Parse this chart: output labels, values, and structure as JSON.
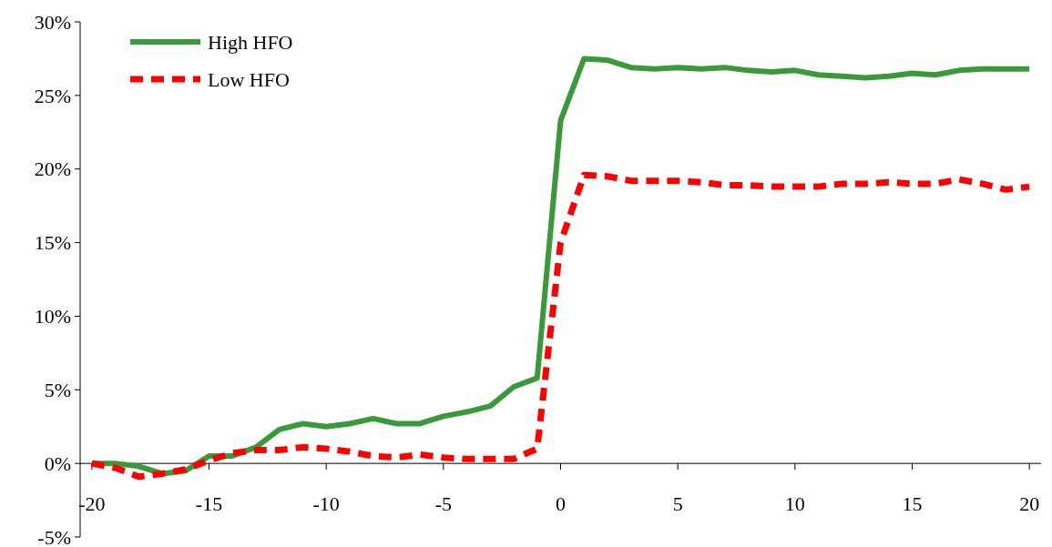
{
  "chart_data": {
    "type": "line",
    "x": [
      -20,
      -19,
      -18,
      -17,
      -16,
      -15,
      -14,
      -13,
      -12,
      -11,
      -10,
      -9,
      -8,
      -7,
      -6,
      -5,
      -4,
      -3,
      -2,
      -1,
      0,
      1,
      2,
      3,
      4,
      5,
      6,
      7,
      8,
      9,
      10,
      11,
      12,
      13,
      14,
      15,
      16,
      17,
      18,
      19,
      20
    ],
    "series": [
      {
        "name": "High HFO",
        "color": "#3a9a3a",
        "line_style": "solid",
        "values": [
          0,
          0,
          -0.2,
          -0.7,
          -0.5,
          0.5,
          0.5,
          1.1,
          2.3,
          2.7,
          2.5,
          2.7,
          3.05,
          2.7,
          2.7,
          3.2,
          3.5,
          3.9,
          5.2,
          5.8,
          23.3,
          27.5,
          27.4,
          26.9,
          26.8,
          26.9,
          26.8,
          26.9,
          26.7,
          26.6,
          26.7,
          26.4,
          26.3,
          26.2,
          26.3,
          26.5,
          26.4,
          26.7,
          26.8,
          26.8,
          26.8
        ]
      },
      {
        "name": "Low HFO",
        "color": "#ff0000",
        "line_style": "dashed",
        "values": [
          0,
          -0.3,
          -0.9,
          -0.7,
          -0.4,
          0.2,
          0.7,
          0.9,
          0.9,
          1.1,
          1.0,
          0.8,
          0.5,
          0.4,
          0.6,
          0.4,
          0.3,
          0.3,
          0.3,
          1.0,
          15,
          19.6,
          19.5,
          19.2,
          19.2,
          19.2,
          19.1,
          18.9,
          18.9,
          18.8,
          18.8,
          18.8,
          19.0,
          19.0,
          19.1,
          19.0,
          19.0,
          19.3,
          19.0,
          18.6,
          18.8
        ]
      }
    ],
    "xlim": [
      -20.5,
      20.5
    ],
    "xticks": [
      -20,
      -15,
      -10,
      -5,
      0,
      5,
      10,
      15,
      20
    ],
    "ylim": [
      -5,
      30
    ],
    "yticks": [
      {
        "value": -5,
        "label": "-5%"
      },
      {
        "value": 0,
        "label": "0%"
      },
      {
        "value": 5,
        "label": "5%"
      },
      {
        "value": 10,
        "label": "10%"
      },
      {
        "value": 15,
        "label": "15%"
      },
      {
        "value": 20,
        "label": "20%"
      },
      {
        "value": 25,
        "label": "25%"
      },
      {
        "value": 30,
        "label": "30%"
      }
    ],
    "grid": false,
    "legend": "top left",
    "marker": "none"
  }
}
